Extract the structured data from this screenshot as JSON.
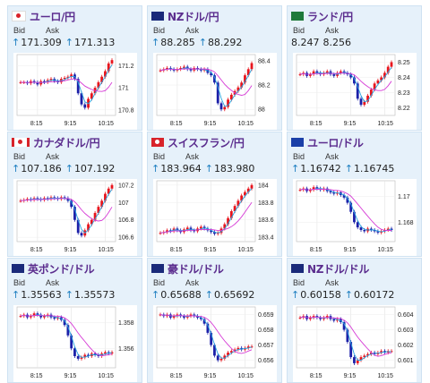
{
  "ui": {
    "bid_label": "Bid",
    "ask_label": "Ask"
  },
  "colors": {
    "up": "#e8141c",
    "down": "#1b1fa8",
    "ma_fast": "#27a4e0",
    "ma_slow": "#d63ad6",
    "title": "#5b2d8e",
    "arrow": "#1d7fc1",
    "tile_bg": "#e6f1fa"
  },
  "tiles": [
    {
      "name": "ユーロ/円",
      "flag": "jp-eu",
      "bid": "171.309",
      "ask": "171.313",
      "bid_arrow": "up",
      "ask_arrow": "up",
      "chart_data": {
        "type": "candlestick",
        "x_ticks": [
          "8:15",
          "9:15",
          "10:15"
        ],
        "y_ticks": [
          "171.2",
          "171",
          "170.8"
        ],
        "ylim": [
          170.75,
          171.3
        ],
        "trend": [
          171.05,
          171.05,
          171.04,
          171.06,
          171.05,
          171.03,
          171.06,
          171.05,
          171.07,
          171.08,
          171.06,
          171.05,
          171.08,
          171.09,
          171.1,
          171.12,
          171.08,
          170.95,
          170.85,
          170.82,
          170.9,
          170.95,
          171.0,
          171.05,
          171.1,
          171.15,
          171.22,
          171.25
        ]
      }
    },
    {
      "name": "NZドル/円",
      "flag": "nz-jp",
      "bid": "88.285",
      "ask": "88.292",
      "bid_arrow": "up",
      "ask_arrow": "up",
      "chart_data": {
        "type": "candlestick",
        "x_ticks": [
          "8:15",
          "9:15",
          "10:15"
        ],
        "y_ticks": [
          "88.4",
          "88.2",
          "88"
        ],
        "ylim": [
          87.95,
          88.45
        ],
        "trend": [
          88.32,
          88.33,
          88.34,
          88.33,
          88.32,
          88.33,
          88.34,
          88.35,
          88.33,
          88.32,
          88.34,
          88.33,
          88.32,
          88.33,
          88.3,
          88.28,
          88.22,
          88.05,
          88.0,
          88.02,
          88.08,
          88.12,
          88.15,
          88.18,
          88.22,
          88.28,
          88.33,
          88.38
        ]
      }
    },
    {
      "name": "ランド/円",
      "flag": "za-jp",
      "bid": "8.247",
      "ask": "8.256",
      "bid_arrow": "",
      "ask_arrow": "",
      "chart_data": {
        "type": "candlestick",
        "x_ticks": [
          "8:15",
          "9:15",
          "10:15"
        ],
        "y_ticks": [
          "8.25",
          "8.24",
          "8.23",
          "8.22"
        ],
        "ylim": [
          8.215,
          8.255
        ],
        "trend": [
          8.242,
          8.243,
          8.241,
          8.242,
          8.244,
          8.243,
          8.242,
          8.243,
          8.244,
          8.242,
          8.241,
          8.243,
          8.244,
          8.243,
          8.242,
          8.24,
          8.236,
          8.226,
          8.222,
          8.224,
          8.228,
          8.232,
          8.236,
          8.238,
          8.24,
          8.243,
          8.247,
          8.25
        ]
      }
    },
    {
      "name": "カナダドル/円",
      "flag": "ca-jp",
      "bid": "107.186",
      "ask": "107.192",
      "bid_arrow": "up",
      "ask_arrow": "up",
      "chart_data": {
        "type": "candlestick",
        "x_ticks": [
          "8:15",
          "9:15",
          "10:15"
        ],
        "y_ticks": [
          "107.2",
          "107",
          "106.8",
          "106.6"
        ],
        "ylim": [
          106.55,
          107.25
        ],
        "trend": [
          107.02,
          107.03,
          107.04,
          107.03,
          107.05,
          107.04,
          107.03,
          107.05,
          107.04,
          107.06,
          107.05,
          107.04,
          107.06,
          107.05,
          107.02,
          106.95,
          106.8,
          106.65,
          106.62,
          106.68,
          106.75,
          106.8,
          106.88,
          106.95,
          107.02,
          107.1,
          107.16,
          107.2
        ]
      }
    },
    {
      "name": "スイスフラン/円",
      "flag": "ch-jp",
      "bid": "183.964",
      "ask": "183.980",
      "bid_arrow": "up",
      "ask_arrow": "up",
      "chart_data": {
        "type": "candlestick",
        "x_ticks": [
          "8:15",
          "9:15",
          "10:15"
        ],
        "y_ticks": [
          "184",
          "183.8",
          "183.6",
          "183.4"
        ],
        "ylim": [
          183.35,
          184.05
        ],
        "trend": [
          183.45,
          183.46,
          183.48,
          183.47,
          183.5,
          183.48,
          183.46,
          183.49,
          183.51,
          183.48,
          183.47,
          183.5,
          183.52,
          183.5,
          183.48,
          183.46,
          183.44,
          183.45,
          183.5,
          183.55,
          183.62,
          183.7,
          183.76,
          183.82,
          183.88,
          183.92,
          183.96,
          184.0
        ]
      }
    },
    {
      "name": "ユーロ/ドル",
      "flag": "eu-us",
      "bid": "1.16742",
      "ask": "1.16745",
      "bid_arrow": "up",
      "ask_arrow": "up",
      "chart_data": {
        "type": "candlestick",
        "x_ticks": [
          "8:15",
          "9:15",
          "10:15"
        ],
        "y_ticks": [
          "1.17",
          "1.168"
        ],
        "ylim": [
          1.1665,
          1.1712
        ],
        "trend": [
          1.1705,
          1.1706,
          1.1704,
          1.1705,
          1.1707,
          1.1706,
          1.1705,
          1.1706,
          1.1704,
          1.1703,
          1.1702,
          1.1703,
          1.1701,
          1.1699,
          1.1695,
          1.1688,
          1.168,
          1.1676,
          1.1674,
          1.1673,
          1.1675,
          1.1674,
          1.1673,
          1.1672,
          1.1673,
          1.1674,
          1.1675,
          1.1674
        ]
      }
    },
    {
      "name": "英ポンド/ドル",
      "flag": "gb-us",
      "bid": "1.35563",
      "ask": "1.35573",
      "bid_arrow": "up",
      "ask_arrow": "up",
      "chart_data": {
        "type": "candlestick",
        "x_ticks": [
          "8:15",
          "9:15",
          "10:15"
        ],
        "y_ticks": [
          "1.358",
          "1.356"
        ],
        "ylim": [
          1.3545,
          1.3592
        ],
        "trend": [
          1.3585,
          1.3586,
          1.3584,
          1.3585,
          1.3587,
          1.3586,
          1.3584,
          1.3585,
          1.3586,
          1.3584,
          1.3583,
          1.3584,
          1.3582,
          1.3578,
          1.357,
          1.356,
          1.3554,
          1.3552,
          1.3553,
          1.3555,
          1.3554,
          1.3556,
          1.3555,
          1.3554,
          1.3556,
          1.3557,
          1.3556,
          1.3557
        ]
      }
    },
    {
      "name": "豪ドル/ドル",
      "flag": "au-us",
      "bid": "0.65688",
      "ask": "0.65692",
      "bid_arrow": "up",
      "ask_arrow": "up",
      "chart_data": {
        "type": "candlestick",
        "x_ticks": [
          "8:15",
          "9:15",
          "10:15"
        ],
        "y_ticks": [
          "0.659",
          "0.658",
          "0.657",
          "0.656"
        ],
        "ylim": [
          0.6555,
          0.6595
        ],
        "trend": [
          0.659,
          0.6589,
          0.659,
          0.6588,
          0.6589,
          0.659,
          0.6589,
          0.6588,
          0.6589,
          0.659,
          0.6589,
          0.6588,
          0.6587,
          0.6584,
          0.6578,
          0.657,
          0.6563,
          0.656,
          0.6561,
          0.6563,
          0.6565,
          0.6566,
          0.6567,
          0.6568,
          0.6567,
          0.6568,
          0.6569,
          0.6569
        ]
      }
    },
    {
      "name": "NZドル/ドル",
      "flag": "nz-us",
      "bid": "0.60158",
      "ask": "0.60172",
      "bid_arrow": "up",
      "ask_arrow": "up",
      "chart_data": {
        "type": "candlestick",
        "x_ticks": [
          "8:15",
          "9:15",
          "10:15"
        ],
        "y_ticks": [
          "0.604",
          "0.603",
          "0.602",
          "0.601"
        ],
        "ylim": [
          0.6005,
          0.6045
        ],
        "trend": [
          0.6038,
          0.6039,
          0.6037,
          0.6038,
          0.6039,
          0.6038,
          0.6037,
          0.6038,
          0.6039,
          0.6037,
          0.6036,
          0.6037,
          0.6035,
          0.603,
          0.6022,
          0.6012,
          0.6008,
          0.601,
          0.6012,
          0.6013,
          0.6014,
          0.6015,
          0.6014,
          0.6015,
          0.6016,
          0.6015,
          0.6016,
          0.6016
        ]
      }
    }
  ]
}
